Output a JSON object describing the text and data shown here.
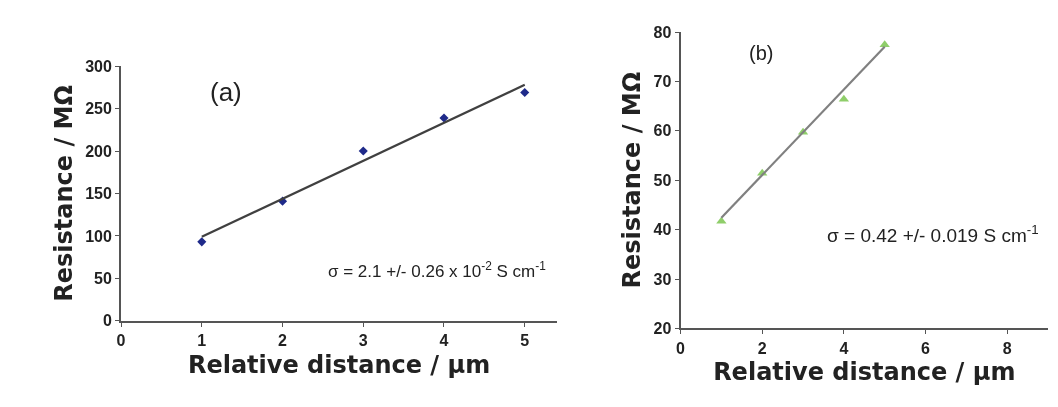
{
  "chart_data": [
    {
      "type": "scatter",
      "xlabel": "Relative distance / µm",
      "ylabel": "Resistance / MΩ",
      "annotations": [
        "(a)",
        "σ = 2.1 +/- 0.26 x 10$^{-2}$ S cm$^{-1}$"
      ],
      "x": [
        1,
        2,
        3,
        4,
        5
      ],
      "series": [
        {
          "color": "#1f2a8a",
          "marker": "diamond",
          "values": [
            93,
            141,
            200,
            239,
            269
          ]
        },
        {
          "type": "line",
          "color": "#404040",
          "marker": "none",
          "values": [
            99,
            null,
            null,
            null,
            278
          ]
        }
      ],
      "xlim": [
        0,
        5.4
      ],
      "xticks": [
        0,
        1,
        2,
        3,
        4,
        5
      ],
      "ylim": [
        0,
        300
      ],
      "yticks": [
        0,
        50,
        100,
        150,
        200,
        250,
        300
      ]
    },
    {
      "type": "scatter",
      "xlabel": "Relative distance / µm",
      "ylabel": "Resistance / MΩ",
      "annotations": [
        "(b)",
        "σ = 0.42 +/- 0.019 S cm$^{-1}$"
      ],
      "x": [
        1,
        2,
        3,
        4,
        5
      ],
      "series": [
        {
          "color": "#8fce6a",
          "marker": "triangle",
          "values": [
            41.7,
            51.4,
            59.7,
            66.4,
            77.4
          ]
        },
        {
          "type": "line",
          "color": "#808080",
          "marker": "none",
          "values": [
            42.4,
            null,
            null,
            null,
            77
          ]
        }
      ],
      "xlim": [
        0,
        9
      ],
      "xticks": [
        0,
        2,
        4,
        6,
        8
      ],
      "ylim": [
        20,
        80
      ],
      "yticks": [
        20,
        30,
        40,
        50,
        60,
        70,
        80
      ]
    }
  ]
}
